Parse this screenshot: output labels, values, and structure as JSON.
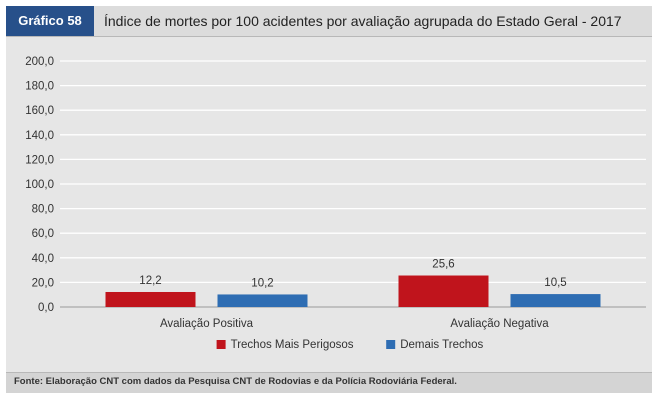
{
  "figure": {
    "tag": "Gráfico 58",
    "title": "Índice de mortes por 100 acidentes por avaliação agrupada do Estado Geral - 2017",
    "source": "Fonte: Elaboração CNT com dados da Pesquisa CNT de Rodovias e da Polícia Rodoviária Federal."
  },
  "chart_data": {
    "type": "bar",
    "categories": [
      "Avaliação Positiva",
      "Avaliação Negativa"
    ],
    "series": [
      {
        "name": "Trechos Mais Perigosos",
        "values": [
          12.2,
          25.6
        ],
        "labels": [
          "12,2",
          "25,6"
        ],
        "color": "#c0141c"
      },
      {
        "name": "Demais Trechos",
        "values": [
          10.2,
          10.5
        ],
        "labels": [
          "10,2",
          "10,5"
        ],
        "color": "#2e6db3"
      }
    ],
    "ylim": [
      0,
      200
    ],
    "yticks": [
      "0,0",
      "20,0",
      "40,0",
      "60,0",
      "80,0",
      "100,0",
      "120,0",
      "140,0",
      "160,0",
      "180,0",
      "200,0"
    ],
    "grid": true,
    "legend": "bottom-center",
    "title": "",
    "xlabel": "",
    "ylabel": ""
  }
}
